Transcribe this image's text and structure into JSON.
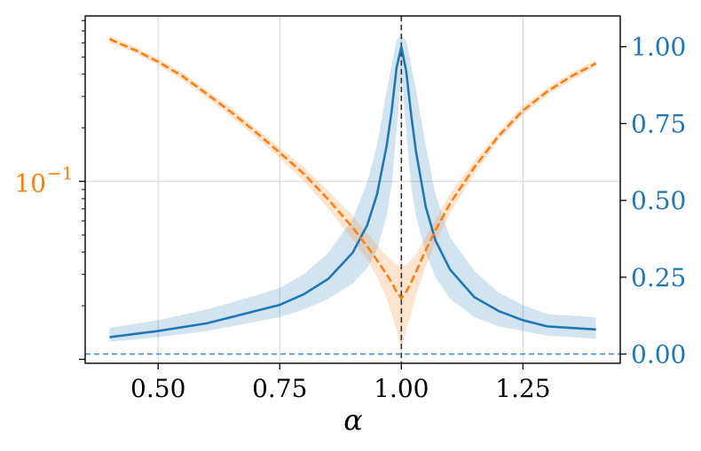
{
  "colors": {
    "blue": "#1f77b4",
    "orange": "#ff7f0e",
    "blue_band": "#1f77b4",
    "orange_band": "#ff7f0e",
    "grid": "#d9d9d9",
    "vline": "#333333",
    "hline": "#4a90b8"
  },
  "chart_data": {
    "type": "line",
    "title": "",
    "xlabel": "α",
    "x_axis": {
      "range": [
        0.35,
        1.45
      ],
      "ticks": [
        0.5,
        0.75,
        1.0,
        1.25
      ],
      "tick_labels": [
        "0.50",
        "0.75",
        "1.00",
        "1.25"
      ],
      "grid": true
    },
    "y_axis_right": {
      "range": [
        -0.03,
        1.1
      ],
      "ticks": [
        0.0,
        0.25,
        0.5,
        0.75,
        1.0
      ],
      "tick_labels": [
        "0.00",
        "0.25",
        "0.50",
        "0.75",
        "1.00"
      ],
      "color": "#1f77b4"
    },
    "y_axis_left": {
      "scale": "log",
      "range": [
        0.0095,
        0.85
      ],
      "labeled_ticks": [
        0.1
      ],
      "tick_labels": [
        "10",
        "−1"
      ],
      "color": "#ff7f0e",
      "grid": true
    },
    "reference_lines": {
      "vertical_x": 1.0,
      "horizontal_right_y": 0.0
    },
    "series": [
      {
        "axis": "right",
        "style": "solid",
        "color": "#1f77b4",
        "x": [
          0.4,
          0.5,
          0.6,
          0.7,
          0.75,
          0.8,
          0.85,
          0.9,
          0.93,
          0.95,
          0.97,
          0.98,
          0.99,
          1.0,
          1.01,
          1.02,
          1.03,
          1.05,
          1.07,
          1.1,
          1.15,
          1.2,
          1.25,
          1.3,
          1.4
        ],
        "y": [
          0.055,
          0.075,
          0.1,
          0.14,
          0.16,
          0.195,
          0.245,
          0.33,
          0.42,
          0.52,
          0.68,
          0.79,
          0.93,
          1.0,
          0.92,
          0.78,
          0.66,
          0.48,
          0.37,
          0.275,
          0.185,
          0.14,
          0.11,
          0.09,
          0.08
        ],
        "band_lower": [
          0.04,
          0.055,
          0.075,
          0.105,
          0.12,
          0.145,
          0.18,
          0.23,
          0.28,
          0.34,
          0.45,
          0.55,
          0.72,
          0.92,
          0.72,
          0.55,
          0.45,
          0.33,
          0.25,
          0.18,
          0.12,
          0.09,
          0.075,
          0.06,
          0.05
        ],
        "band_upper": [
          0.085,
          0.11,
          0.145,
          0.19,
          0.215,
          0.26,
          0.33,
          0.44,
          0.56,
          0.68,
          0.86,
          0.94,
          1.02,
          1.04,
          1.02,
          0.94,
          0.86,
          0.68,
          0.52,
          0.38,
          0.27,
          0.2,
          0.16,
          0.13,
          0.12
        ]
      },
      {
        "axis": "left",
        "style": "dashed",
        "color": "#ff7f0e",
        "x": [
          0.4,
          0.45,
          0.5,
          0.55,
          0.6,
          0.65,
          0.7,
          0.75,
          0.8,
          0.85,
          0.9,
          0.93,
          0.95,
          0.97,
          0.98,
          0.99,
          1.0,
          1.01,
          1.02,
          1.03,
          1.05,
          1.07,
          1.1,
          1.15,
          1.2,
          1.25,
          1.3,
          1.35,
          1.4
        ],
        "y": [
          0.63,
          0.55,
          0.47,
          0.39,
          0.31,
          0.245,
          0.19,
          0.145,
          0.11,
          0.079,
          0.055,
          0.043,
          0.036,
          0.03,
          0.027,
          0.024,
          0.022,
          0.024,
          0.027,
          0.031,
          0.041,
          0.053,
          0.075,
          0.12,
          0.18,
          0.25,
          0.32,
          0.39,
          0.46
        ],
        "band_lower": [
          0.6,
          0.53,
          0.45,
          0.37,
          0.295,
          0.23,
          0.178,
          0.135,
          0.1,
          0.07,
          0.047,
          0.036,
          0.029,
          0.022,
          0.018,
          0.0145,
          0.0115,
          0.0145,
          0.018,
          0.023,
          0.033,
          0.045,
          0.066,
          0.11,
          0.17,
          0.235,
          0.305,
          0.37,
          0.44
        ],
        "band_upper": [
          0.66,
          0.575,
          0.49,
          0.41,
          0.325,
          0.26,
          0.2,
          0.155,
          0.12,
          0.088,
          0.064,
          0.051,
          0.044,
          0.038,
          0.036,
          0.034,
          0.033,
          0.034,
          0.036,
          0.039,
          0.049,
          0.061,
          0.085,
          0.13,
          0.19,
          0.265,
          0.335,
          0.41,
          0.48
        ]
      }
    ]
  }
}
